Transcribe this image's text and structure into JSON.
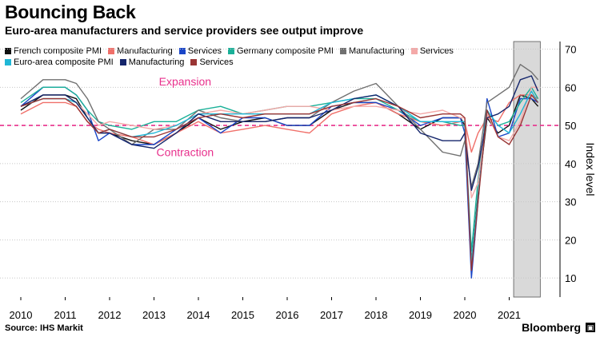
{
  "header": {
    "title": "Bouncing Back",
    "subtitle": "Euro-area manufacturers and service providers see output improve"
  },
  "footer": {
    "source": "Source: IHS Markit",
    "brand": "Bloomberg"
  },
  "chart_data": {
    "type": "line",
    "title": "Bouncing Back",
    "subtitle": "Euro-area manufacturers and service providers see output improve",
    "xlabel": "",
    "ylabel": "Index level",
    "xlim": [
      2010,
      2021.75
    ],
    "ylim": [
      5,
      72
    ],
    "xticks": [
      "2010",
      "2011",
      "2012",
      "2013",
      "2014",
      "2015",
      "2016",
      "2017",
      "2018",
      "2019",
      "2020",
      "2021"
    ],
    "yticks": [
      10,
      20,
      30,
      40,
      50,
      60,
      70
    ],
    "y_axis_side": "right",
    "grid": "horizontal dotted",
    "reference_line": {
      "y": 50,
      "color": "#e8308c",
      "style": "dashed"
    },
    "annotations": [
      {
        "text": "Expansion",
        "x": 2013.7,
        "y": 60.5,
        "color": "#e8308c"
      },
      {
        "text": "Contraction",
        "x": 2013.7,
        "y": 42,
        "color": "#e8308c"
      }
    ],
    "shaded_region": {
      "x": [
        2021.1,
        2021.7
      ],
      "color": "#d9d9d9"
    },
    "legend_placement": "top",
    "x": [
      2010.0,
      2010.5,
      2011.0,
      2011.25,
      2011.5,
      2011.75,
      2012.0,
      2012.5,
      2013.0,
      2013.5,
      2014.0,
      2014.5,
      2015.0,
      2015.5,
      2016.0,
      2016.5,
      2017.0,
      2017.5,
      2018.0,
      2018.5,
      2019.0,
      2019.5,
      2019.9,
      2020.0,
      2020.15,
      2020.3,
      2020.5,
      2020.75,
      2021.0,
      2021.25,
      2021.5,
      2021.65
    ],
    "series": [
      {
        "name": "French composite PMI",
        "color": "#111111",
        "values": [
          54,
          58,
          58,
          57,
          52,
          48,
          48,
          46,
          45,
          48,
          52,
          49,
          51,
          52,
          50,
          50,
          54,
          56,
          56,
          53,
          49,
          52,
          52,
          50,
          14,
          32,
          52,
          48,
          50,
          58,
          57,
          55
        ]
      },
      {
        "name": "Manufacturing",
        "color": "#f0706a",
        "values": [
          53,
          56,
          56,
          55,
          51,
          49,
          48,
          47,
          45,
          48,
          51,
          48,
          49,
          50,
          49,
          48,
          53,
          55,
          56,
          53,
          51,
          50,
          51,
          51,
          43,
          48,
          52,
          51,
          56,
          58,
          58,
          57
        ]
      },
      {
        "name": "Services",
        "color": "#1a46c8",
        "values": [
          55,
          60,
          60,
          58,
          54,
          46,
          48,
          45,
          45,
          49,
          52,
          48,
          52,
          52,
          50,
          50,
          55,
          56,
          56,
          54,
          50,
          52,
          52,
          48,
          10,
          30,
          57,
          47,
          48,
          57,
          57,
          56
        ]
      },
      {
        "name": "Germany composite PMI",
        "color": "#1ab098",
        "values": [
          56,
          60,
          60,
          58,
          54,
          51,
          50,
          49,
          51,
          51,
          54,
          55,
          53,
          54,
          55,
          55,
          56,
          57,
          57,
          54,
          51,
          51,
          50,
          50,
          17,
          36,
          54,
          50,
          51,
          56,
          60,
          57
        ]
      },
      {
        "name": "Manufacturing",
        "color": "#707070",
        "values": [
          57,
          62,
          62,
          61,
          57,
          51,
          49,
          45,
          49,
          49,
          54,
          52,
          51,
          51,
          52,
          52,
          56,
          59,
          61,
          55,
          49,
          43,
          42,
          46,
          34,
          40,
          56,
          58,
          60,
          66,
          64,
          62
        ]
      },
      {
        "name": "Services",
        "color": "#f4a9a8",
        "values": [
          55,
          57,
          57,
          56,
          53,
          50,
          51,
          50,
          49,
          50,
          53,
          54,
          53,
          54,
          55,
          55,
          54,
          55,
          55,
          54,
          53,
          54,
          52,
          52,
          31,
          35,
          53,
          47,
          46,
          51,
          60,
          60
        ]
      },
      {
        "name": "Euro-area composite PMI",
        "color": "#1fb7d6",
        "values": [
          55,
          57,
          57,
          56,
          52,
          48,
          49,
          47,
          48,
          50,
          53,
          53,
          53,
          53,
          53,
          53,
          56,
          57,
          58,
          55,
          51,
          51,
          51,
          51,
          14,
          31,
          54,
          50,
          48,
          53,
          59,
          56
        ]
      },
      {
        "name": "Manufacturing",
        "color": "#14256b",
        "values": [
          55,
          58,
          58,
          56,
          52,
          48,
          48,
          45,
          44,
          48,
          53,
          51,
          51,
          51,
          52,
          52,
          54,
          57,
          58,
          55,
          48,
          46,
          46,
          48,
          33,
          39,
          52,
          53,
          55,
          62,
          63,
          59
        ]
      },
      {
        "name": "Services",
        "color": "#9a3534",
        "values": [
          55,
          57,
          57,
          55,
          51,
          48,
          49,
          47,
          47,
          49,
          52,
          53,
          52,
          53,
          53,
          53,
          55,
          56,
          57,
          55,
          52,
          53,
          53,
          52,
          12,
          30,
          54,
          47,
          45,
          50,
          58,
          56
        ]
      }
    ]
  }
}
